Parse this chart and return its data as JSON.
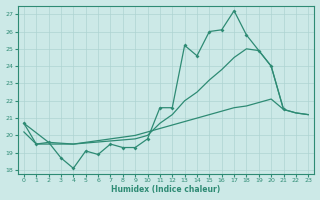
{
  "xlabel": "Humidex (Indice chaleur)",
  "color": "#2e8b74",
  "bg_color": "#cce9e7",
  "grid_color": "#aed4d2",
  "ylim": [
    17.8,
    27.5
  ],
  "xlim": [
    -0.5,
    23.5
  ],
  "yticks": [
    18,
    19,
    20,
    21,
    22,
    23,
    24,
    25,
    26,
    27
  ],
  "xticks": [
    0,
    1,
    2,
    3,
    4,
    5,
    6,
    7,
    8,
    9,
    10,
    11,
    12,
    13,
    14,
    15,
    16,
    17,
    18,
    19,
    20,
    21,
    22,
    23
  ],
  "lineA_x": [
    0,
    1,
    2,
    3,
    4,
    5,
    6,
    7,
    8,
    9,
    10,
    11,
    12,
    13,
    14,
    15,
    16,
    17,
    18,
    19,
    20,
    21
  ],
  "lineA_y": [
    20.7,
    19.5,
    19.6,
    18.7,
    18.1,
    19.1,
    18.9,
    19.5,
    19.3,
    19.3,
    19.8,
    21.6,
    21.6,
    25.2,
    24.6,
    26.0,
    26.1,
    27.2,
    25.8,
    24.9,
    24.0,
    21.5
  ],
  "lineB_x": [
    0,
    2,
    4,
    9,
    10,
    11,
    12,
    13,
    14,
    15,
    16,
    17,
    18,
    19,
    20,
    21,
    22,
    23
  ],
  "lineB_y": [
    20.7,
    19.6,
    19.5,
    19.8,
    20.0,
    20.7,
    21.2,
    22.0,
    22.5,
    23.2,
    23.8,
    24.5,
    25.0,
    24.9,
    24.0,
    21.5,
    21.3,
    21.2
  ],
  "lineC_x": [
    0,
    1,
    2,
    3,
    4,
    5,
    6,
    7,
    8,
    9,
    10,
    11,
    12,
    13,
    14,
    15,
    16,
    17,
    18,
    19,
    20,
    21,
    22,
    23
  ],
  "lineC_y": [
    20.2,
    19.5,
    19.5,
    19.5,
    19.5,
    19.6,
    19.7,
    19.8,
    19.9,
    20.0,
    20.2,
    20.4,
    20.6,
    20.8,
    21.0,
    21.2,
    21.4,
    21.6,
    21.7,
    21.9,
    22.1,
    21.5,
    21.3,
    21.2
  ]
}
